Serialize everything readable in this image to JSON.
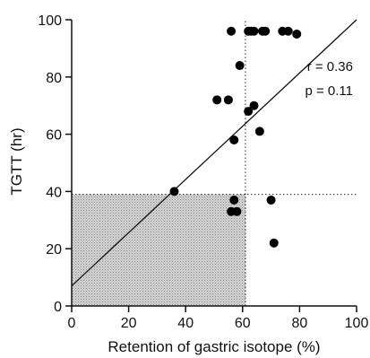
{
  "chart_data": {
    "type": "scatter",
    "title": "",
    "xlabel": "Retention of gastric isotope (%)",
    "ylabel": "TGTT (hr)",
    "xlim": [
      0,
      100
    ],
    "ylim": [
      0,
      100
    ],
    "x_ticks": [
      "0",
      "20",
      "40",
      "60",
      "80",
      "100"
    ],
    "y_ticks": [
      "0",
      "20",
      "40",
      "60",
      "80",
      "100"
    ],
    "grid": false,
    "points": [
      {
        "x": 56,
        "y": 96
      },
      {
        "x": 62,
        "y": 96
      },
      {
        "x": 63,
        "y": 96
      },
      {
        "x": 64,
        "y": 96
      },
      {
        "x": 67,
        "y": 96
      },
      {
        "x": 68,
        "y": 96
      },
      {
        "x": 74,
        "y": 96
      },
      {
        "x": 76,
        "y": 96
      },
      {
        "x": 79,
        "y": 95
      },
      {
        "x": 59,
        "y": 84
      },
      {
        "x": 51,
        "y": 72
      },
      {
        "x": 55,
        "y": 72
      },
      {
        "x": 62,
        "y": 68
      },
      {
        "x": 64,
        "y": 70
      },
      {
        "x": 66,
        "y": 61
      },
      {
        "x": 57,
        "y": 58
      },
      {
        "x": 36,
        "y": 40
      },
      {
        "x": 57,
        "y": 37
      },
      {
        "x": 56,
        "y": 33
      },
      {
        "x": 58,
        "y": 33
      },
      {
        "x": 70,
        "y": 37
      },
      {
        "x": 71,
        "y": 22
      }
    ],
    "regression_line": {
      "x": [
        0,
        100
      ],
      "y": [
        7,
        100
      ]
    },
    "reference_lines": {
      "x": 61,
      "y": 39
    },
    "shaded_region": {
      "x": [
        0,
        61
      ],
      "y": [
        0,
        39
      ]
    },
    "annotations": [
      "r = 0.36",
      "p = 0.11"
    ]
  }
}
